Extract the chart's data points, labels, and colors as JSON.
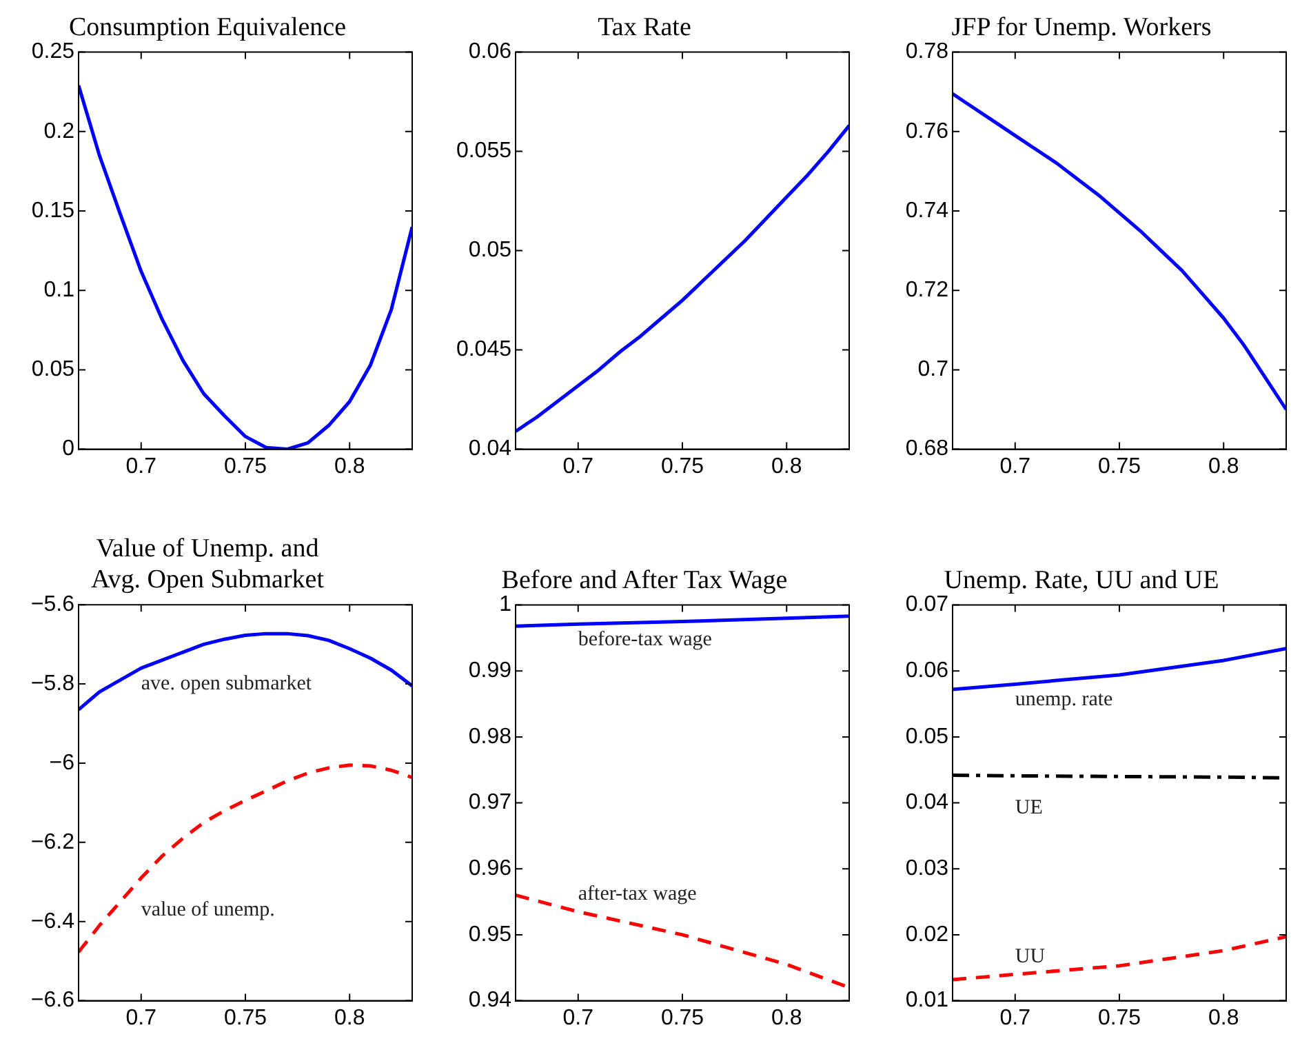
{
  "chart_data": [
    {
      "type": "line",
      "title": "Consumption Equivalence",
      "x": [
        0.67,
        0.68,
        0.69,
        0.7,
        0.71,
        0.72,
        0.73,
        0.74,
        0.75,
        0.76,
        0.77,
        0.78,
        0.79,
        0.8,
        0.81,
        0.82,
        0.83
      ],
      "xlim": [
        0.67,
        0.83
      ],
      "xticks": [
        0.7,
        0.75,
        0.8
      ],
      "ylim": [
        0,
        0.25
      ],
      "yticks": [
        0,
        0.05,
        0.1,
        0.15,
        0.2,
        0.25
      ],
      "grid": false,
      "legend": false,
      "series": [
        {
          "color": "#0000ff",
          "line_style": "solid",
          "values": [
            0.229,
            0.185,
            0.148,
            0.112,
            0.082,
            0.056,
            0.035,
            0.021,
            0.008,
            0.001,
            0.0,
            0.004,
            0.015,
            0.03,
            0.053,
            0.088,
            0.14
          ]
        }
      ]
    },
    {
      "type": "line",
      "title": "Tax Rate",
      "x": [
        0.67,
        0.68,
        0.69,
        0.7,
        0.71,
        0.72,
        0.73,
        0.74,
        0.75,
        0.76,
        0.77,
        0.78,
        0.79,
        0.8,
        0.81,
        0.82,
        0.83
      ],
      "xlim": [
        0.67,
        0.83
      ],
      "xticks": [
        0.7,
        0.75,
        0.8
      ],
      "ylim": [
        0.04,
        0.06
      ],
      "yticks": [
        0.04,
        0.045,
        0.05,
        0.055,
        0.06
      ],
      "grid": false,
      "legend": false,
      "series": [
        {
          "color": "#0000ff",
          "line_style": "solid",
          "values": [
            0.0409,
            0.0416,
            0.0424,
            0.0432,
            0.044,
            0.0449,
            0.0457,
            0.0466,
            0.0475,
            0.0485,
            0.0495,
            0.0505,
            0.0516,
            0.0527,
            0.0538,
            0.055,
            0.0563
          ]
        }
      ]
    },
    {
      "type": "line",
      "title": "JFP for Unemp. Workers",
      "x": [
        0.67,
        0.68,
        0.69,
        0.7,
        0.71,
        0.72,
        0.73,
        0.74,
        0.75,
        0.76,
        0.77,
        0.78,
        0.79,
        0.8,
        0.81,
        0.82,
        0.83
      ],
      "xlim": [
        0.67,
        0.83
      ],
      "xticks": [
        0.7,
        0.75,
        0.8
      ],
      "ylim": [
        0.68,
        0.78
      ],
      "yticks": [
        0.68,
        0.7,
        0.72,
        0.74,
        0.76,
        0.78
      ],
      "grid": false,
      "legend": false,
      "series": [
        {
          "color": "#0000ff",
          "line_style": "solid",
          "values": [
            0.7695,
            0.766,
            0.7625,
            0.759,
            0.7555,
            0.752,
            0.748,
            0.744,
            0.7395,
            0.735,
            0.73,
            0.725,
            0.719,
            0.713,
            0.706,
            0.698,
            0.69
          ]
        }
      ]
    },
    {
      "type": "line",
      "title": "Value of Unemp. and\nAvg. Open Submarket",
      "x": [
        0.67,
        0.68,
        0.69,
        0.7,
        0.71,
        0.72,
        0.73,
        0.74,
        0.75,
        0.76,
        0.77,
        0.78,
        0.79,
        0.8,
        0.81,
        0.82,
        0.83
      ],
      "xlim": [
        0.67,
        0.83
      ],
      "xticks": [
        0.7,
        0.75,
        0.8
      ],
      "ylim": [
        -6.6,
        -5.6
      ],
      "yticks": [
        {
          "value": -6.6,
          "label": "−6.6"
        },
        {
          "value": -6.4,
          "label": "−6.4"
        },
        {
          "value": -6.2,
          "label": "−6.2"
        },
        {
          "value": -6,
          "label": "−6"
        },
        {
          "value": -5.8,
          "label": "−5.8"
        },
        {
          "value": -5.6,
          "label": "−5.6"
        }
      ],
      "grid": false,
      "legend": false,
      "series": [
        {
          "name": "ave. open submarket",
          "color": "#0000ff",
          "line_style": "solid",
          "values": [
            -5.865,
            -5.82,
            -5.79,
            -5.76,
            -5.74,
            -5.72,
            -5.7,
            -5.687,
            -5.677,
            -5.673,
            -5.673,
            -5.678,
            -5.69,
            -5.711,
            -5.735,
            -5.765,
            -5.805
          ]
        },
        {
          "name": "value of unemp.",
          "color": "#ff0000",
          "line_style": "dashed",
          "values": [
            -6.477,
            -6.41,
            -6.35,
            -6.29,
            -6.235,
            -6.19,
            -6.15,
            -6.12,
            -6.094,
            -6.07,
            -6.045,
            -6.025,
            -6.012,
            -6.005,
            -6.007,
            -6.018,
            -6.036
          ]
        }
      ]
    },
    {
      "type": "line",
      "title": "Before and After Tax Wage",
      "x": [
        0.67,
        0.7,
        0.75,
        0.8,
        0.83
      ],
      "xlim": [
        0.67,
        0.83
      ],
      "xticks": [
        0.7,
        0.75,
        0.8
      ],
      "ylim": [
        0.94,
        1
      ],
      "yticks": [
        0.94,
        0.95,
        0.96,
        0.97,
        0.98,
        0.99,
        1
      ],
      "grid": false,
      "legend": false,
      "series": [
        {
          "name": "before-tax wage",
          "color": "#0000ff",
          "line_style": "solid",
          "values": [
            0.9968,
            0.9971,
            0.9975,
            0.998,
            0.9983
          ]
        },
        {
          "name": "after-tax wage",
          "color": "#ff0000",
          "line_style": "dashed",
          "values": [
            0.956,
            0.9535,
            0.95,
            0.9455,
            0.942
          ]
        }
      ]
    },
    {
      "type": "line",
      "title": "Unemp. Rate, UU and UE",
      "x": [
        0.67,
        0.7,
        0.75,
        0.8,
        0.83
      ],
      "xlim": [
        0.67,
        0.83
      ],
      "xticks": [
        0.7,
        0.75,
        0.8
      ],
      "ylim": [
        0.01,
        0.07
      ],
      "yticks": [
        0.01,
        0.02,
        0.03,
        0.04,
        0.05,
        0.06,
        0.07
      ],
      "grid": false,
      "legend": false,
      "series": [
        {
          "name": "unemp. rate",
          "color": "#0000ff",
          "line_style": "solid",
          "values": [
            0.0572,
            0.058,
            0.0594,
            0.0616,
            0.0634
          ]
        },
        {
          "name": "UE",
          "color": "#000000",
          "line_style": "dashdot",
          "values": [
            0.0442,
            0.0441,
            0.044,
            0.0439,
            0.0438
          ]
        },
        {
          "name": "UU",
          "color": "#ff0000",
          "line_style": "dashed",
          "values": [
            0.0132,
            0.014,
            0.0153,
            0.0176,
            0.0197
          ]
        }
      ]
    }
  ]
}
